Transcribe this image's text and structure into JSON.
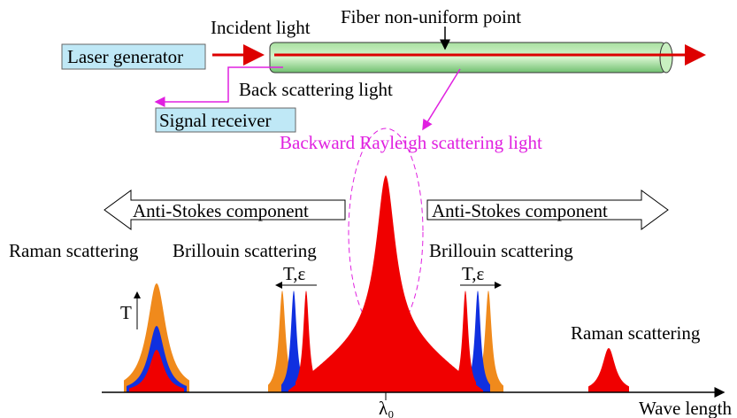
{
  "labels": {
    "incident": "Incident light",
    "nonuniform": "Fiber non-uniform point",
    "laser": "Laser generator",
    "back": "Back scattering light",
    "receiver": "Signal receiver",
    "rayleigh": "Backward Rayleigh scattering light",
    "anti_left": "Anti-Stokes component",
    "anti_right": "Anti-Stokes component",
    "raman_left": "Raman scattering",
    "brillouin_left": "Brillouin scattering",
    "brillouin_right": "Brillouin scattering",
    "te_left": "T,ε",
    "te_right": "T,ε",
    "t": "T",
    "raman_right": "Raman scattering",
    "lambda": "λ₀",
    "wavelength": "Wave length"
  }
}
